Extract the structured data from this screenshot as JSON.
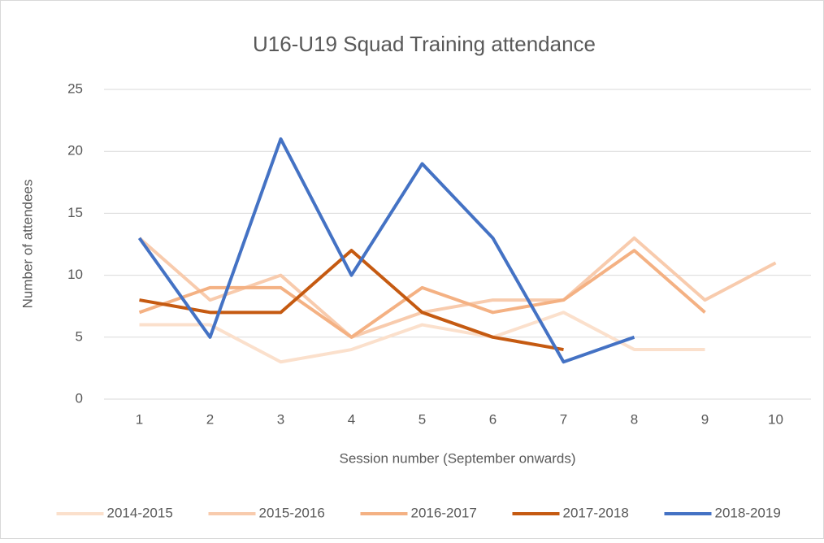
{
  "chart_data": {
    "type": "line",
    "title": "U16-U19 Squad Training attendance",
    "x_label": "Session number (September onwards)",
    "y_label": "Number of attendees",
    "categories": [
      "1",
      "2",
      "3",
      "4",
      "5",
      "6",
      "7",
      "8",
      "9",
      "10"
    ],
    "series": [
      {
        "name": "2014-2015",
        "color": "#fbe0cc",
        "values": [
          6,
          6,
          3,
          4,
          6,
          5,
          7,
          4,
          4,
          null
        ]
      },
      {
        "name": "2015-2016",
        "color": "#f8cbad",
        "values": [
          13,
          8,
          10,
          5,
          7,
          8,
          8,
          13,
          8,
          11
        ]
      },
      {
        "name": "2016-2017",
        "color": "#f4b183",
        "values": [
          7,
          9,
          9,
          5,
          9,
          7,
          8,
          12,
          7,
          null
        ]
      },
      {
        "name": "2017-2018",
        "color": "#c55a11",
        "values": [
          8,
          7,
          7,
          12,
          7,
          5,
          4,
          null,
          null,
          null
        ]
      },
      {
        "name": "2018-2019",
        "color": "#4472c4",
        "values": [
          13,
          5,
          21,
          10,
          19,
          13,
          3,
          5,
          null,
          null
        ]
      }
    ],
    "ylim": [
      0,
      25
    ],
    "yticks": [
      0,
      5,
      10,
      15,
      20,
      25
    ],
    "grid": true,
    "legend": "bottom"
  }
}
